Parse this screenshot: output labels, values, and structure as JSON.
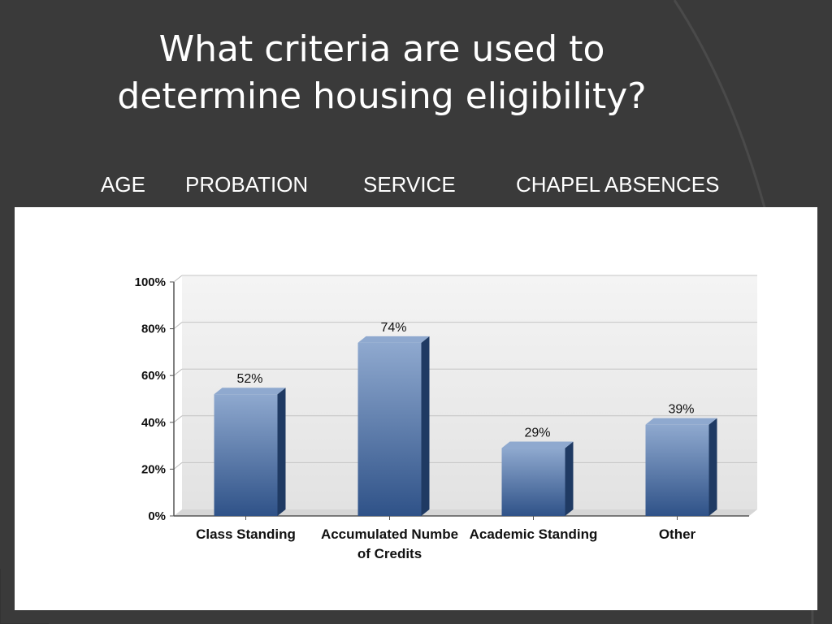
{
  "slide": {
    "title_line1": "What criteria are used to",
    "title_line2": "determine housing eligibility?",
    "criteria": [
      "AGE",
      "PROBATION",
      "SERVICE",
      "CHAPEL ABSENCES"
    ]
  },
  "colors": {
    "background": "#3a3a3a",
    "bar_top": "#8fa9cf",
    "bar_bottom": "#2f5288",
    "bar_side": "#1f3a63"
  },
  "chart_data": {
    "type": "bar",
    "categories": [
      [
        "Class Standing"
      ],
      [
        "Accumulated Numbe",
        "of Credits"
      ],
      [
        "Academic Standing"
      ],
      [
        "Other"
      ]
    ],
    "values": [
      52,
      74,
      29,
      39
    ],
    "value_labels": [
      "52%",
      "74%",
      "29%",
      "39%"
    ],
    "y_ticks": [
      "0%",
      "20%",
      "40%",
      "60%",
      "80%",
      "100%"
    ],
    "ylim": [
      0,
      100
    ],
    "grid": true,
    "legend": "none"
  }
}
